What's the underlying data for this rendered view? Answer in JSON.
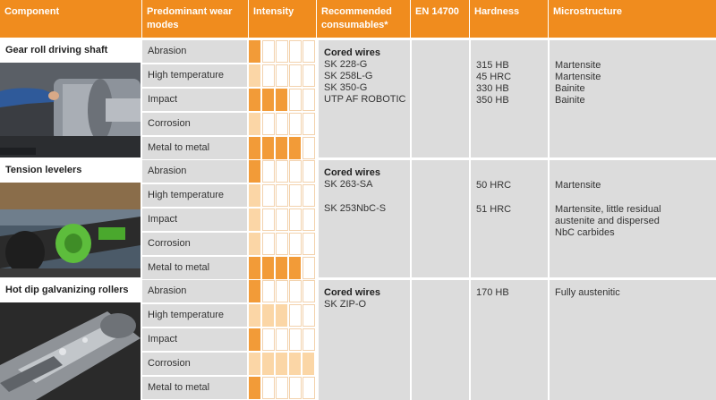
{
  "header": {
    "component": "Component",
    "wear_modes": "Predominant wear modes",
    "intensity": "Intensity",
    "consumables": "Recommended consumables*",
    "en": "EN 14700",
    "hardness": "Hardness",
    "microstructure": "Microstructure"
  },
  "colors": {
    "header": "#f08c1e",
    "intensity_full": "#f29b38",
    "intensity_light": "#fbd6a6",
    "cell_grey": "#dcdcdc"
  },
  "components": [
    {
      "name": "Gear roll driving shaft",
      "photo_icon": "gear-roll-photo",
      "modes": [
        {
          "label": "Abrasion",
          "level": 1,
          "shade": "full"
        },
        {
          "label": "High temperature",
          "level": 1,
          "shade": "light"
        },
        {
          "label": "Impact",
          "level": 3,
          "shade": "full"
        },
        {
          "label": "Corrosion",
          "level": 1,
          "shade": "light"
        },
        {
          "label": "Metal to metal",
          "level": 4,
          "shade": "full"
        }
      ],
      "consumables_title": "Cored wires",
      "consumables": [
        "SK 228-G",
        "SK 258L-G",
        "SK 350-G",
        "UTP AF ROBOTIC"
      ],
      "hardness": [
        "315 HB",
        "45 HRC",
        "330 HB",
        "350 HB"
      ],
      "microstructure": [
        "Martensite",
        "Martensite",
        "Bainite",
        "Bainite"
      ]
    },
    {
      "name": "Tension levelers",
      "photo_icon": "tension-leveler-photo",
      "modes": [
        {
          "label": "Abrasion",
          "level": 1,
          "shade": "full"
        },
        {
          "label": "High temperature",
          "level": 1,
          "shade": "light"
        },
        {
          "label": "Impact",
          "level": 1,
          "shade": "light"
        },
        {
          "label": "Corrosion",
          "level": 1,
          "shade": "light"
        },
        {
          "label": "Metal to metal",
          "level": 4,
          "shade": "full"
        }
      ],
      "consumables_title": "Cored wires",
      "consumables": [
        "SK 263-SA",
        "",
        "SK 253NbC-S"
      ],
      "hardness": [
        "50 HRC",
        "",
        "51 HRC"
      ],
      "microstructure": [
        "Martensite",
        "",
        "Martensite, little residual",
        "austenite and dispersed",
        "NbC carbides"
      ]
    },
    {
      "name": "Hot dip galvanizing rollers",
      "photo_icon": "galvanizing-roller-photo",
      "modes": [
        {
          "label": "Abrasion",
          "level": 1,
          "shade": "full"
        },
        {
          "label": "High temperature",
          "level": 3,
          "shade": "light"
        },
        {
          "label": "Impact",
          "level": 1,
          "shade": "full"
        },
        {
          "label": "Corrosion",
          "level": 5,
          "shade": "light"
        },
        {
          "label": "Metal to metal",
          "level": 1,
          "shade": "full"
        }
      ],
      "consumables_title": "Cored wires",
      "consumables": [
        "SK ZIP-O"
      ],
      "hardness": [
        "170 HB"
      ],
      "microstructure": [
        "Fully austenitic"
      ]
    }
  ]
}
